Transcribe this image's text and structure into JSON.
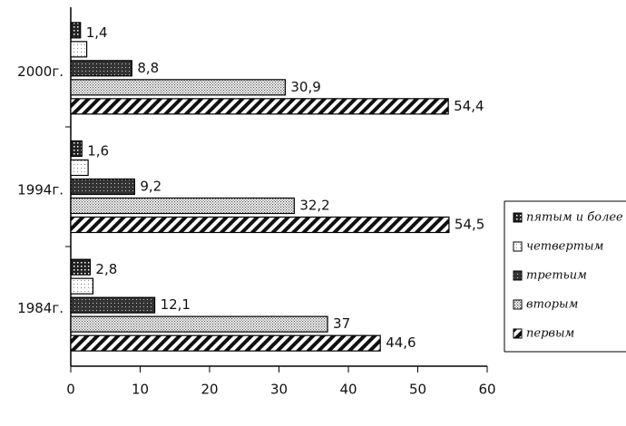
{
  "chart_data": {
    "type": "hbar",
    "categories": [
      "2000г.",
      "1994г.",
      "1984г."
    ],
    "series": [
      {
        "name": "пятым и более",
        "color": "#000000",
        "values": [
          1.4,
          1.6,
          2.8
        ],
        "value_labels": [
          "1,4",
          "1,6",
          "2,8"
        ]
      },
      {
        "name": "четвертым",
        "color": "#000000",
        "values": [
          2.3,
          2.5,
          3.2
        ]
      },
      {
        "name": "третьим",
        "color": "#000000",
        "values": [
          8.8,
          9.2,
          12.1
        ],
        "value_labels": [
          "8,8",
          "9,2",
          "12,1"
        ]
      },
      {
        "name": "вторым",
        "color": "#000000",
        "values": [
          30.9,
          32.2,
          37
        ],
        "value_labels": [
          "30,9",
          "32,2",
          "37"
        ]
      },
      {
        "name": "первым",
        "color": "#000000",
        "values": [
          54.4,
          54.5,
          44.6
        ],
        "value_labels": [
          "54,4",
          "54,5",
          "44,6"
        ]
      }
    ],
    "xlim": [
      0,
      60
    ],
    "xticks": [
      0,
      10,
      20,
      30,
      40,
      50,
      60
    ],
    "legend": "right"
  }
}
